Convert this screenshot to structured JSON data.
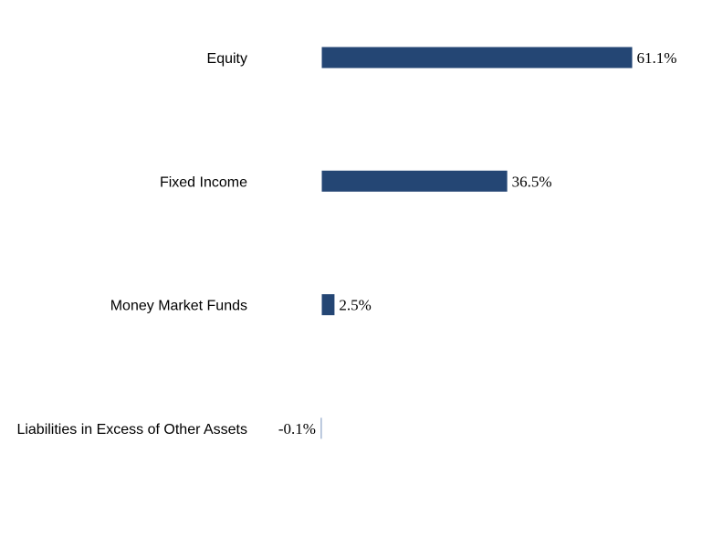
{
  "chart_data": {
    "type": "bar",
    "orientation": "horizontal",
    "categories": [
      "Equity",
      "Fixed Income",
      "Money Market Funds",
      "Liabilities in Excess of Other Assets"
    ],
    "values": [
      61.1,
      36.5,
      2.5,
      -0.1
    ],
    "value_labels": [
      "61.1%",
      "36.5%",
      "2.5%",
      "-0.1%"
    ],
    "unit": "%",
    "bar_color": "#244674",
    "negative_bar_color": "#8ea6c8",
    "title": "",
    "xlabel": "",
    "ylabel": "",
    "grid": false,
    "legend": "none"
  }
}
